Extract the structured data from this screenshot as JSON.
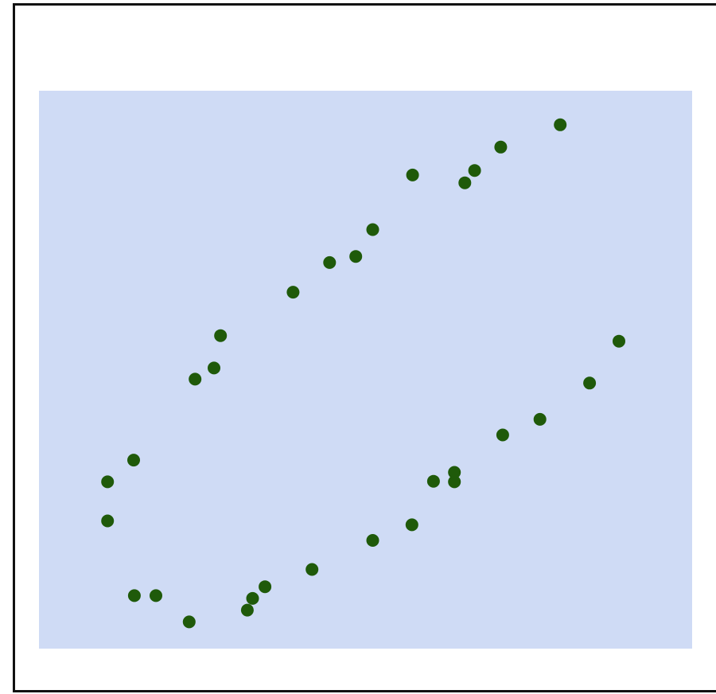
{
  "chart_data": {
    "type": "scatter",
    "title": "",
    "xlabel": "",
    "ylabel": "",
    "grid": false,
    "legend": "none",
    "xlim": [
      0,
      100
    ],
    "ylim": [
      0,
      100
    ],
    "colors": {
      "plot_background": "#cfdbf5",
      "marker": "#1f5a0a",
      "frame": "#111111"
    },
    "series": [
      {
        "marker": "circle",
        "x": [
          10.5,
          10.5,
          14.5,
          14.6,
          17.9,
          23.0,
          23.9,
          26.8,
          27.8,
          31.9,
          32.7,
          34.6,
          38.9,
          41.8,
          44.5,
          48.5,
          51.1,
          51.1,
          57.1,
          57.2,
          60.4,
          63.6,
          65.2,
          63.6,
          66.7,
          71.0,
          70.7,
          76.7,
          79.8,
          84.3,
          88.8
        ],
        "y": [
          29.9,
          22.9,
          33.8,
          9.5,
          9.5,
          4.8,
          48.3,
          50.3,
          56.1,
          6.9,
          9.0,
          11.1,
          63.9,
          14.2,
          69.2,
          70.3,
          19.4,
          75.1,
          22.2,
          84.9,
          30.0,
          29.9,
          83.5,
          31.6,
          85.7,
          38.3,
          89.9,
          41.1,
          93.9,
          47.6,
          55.1
        ]
      }
    ]
  }
}
